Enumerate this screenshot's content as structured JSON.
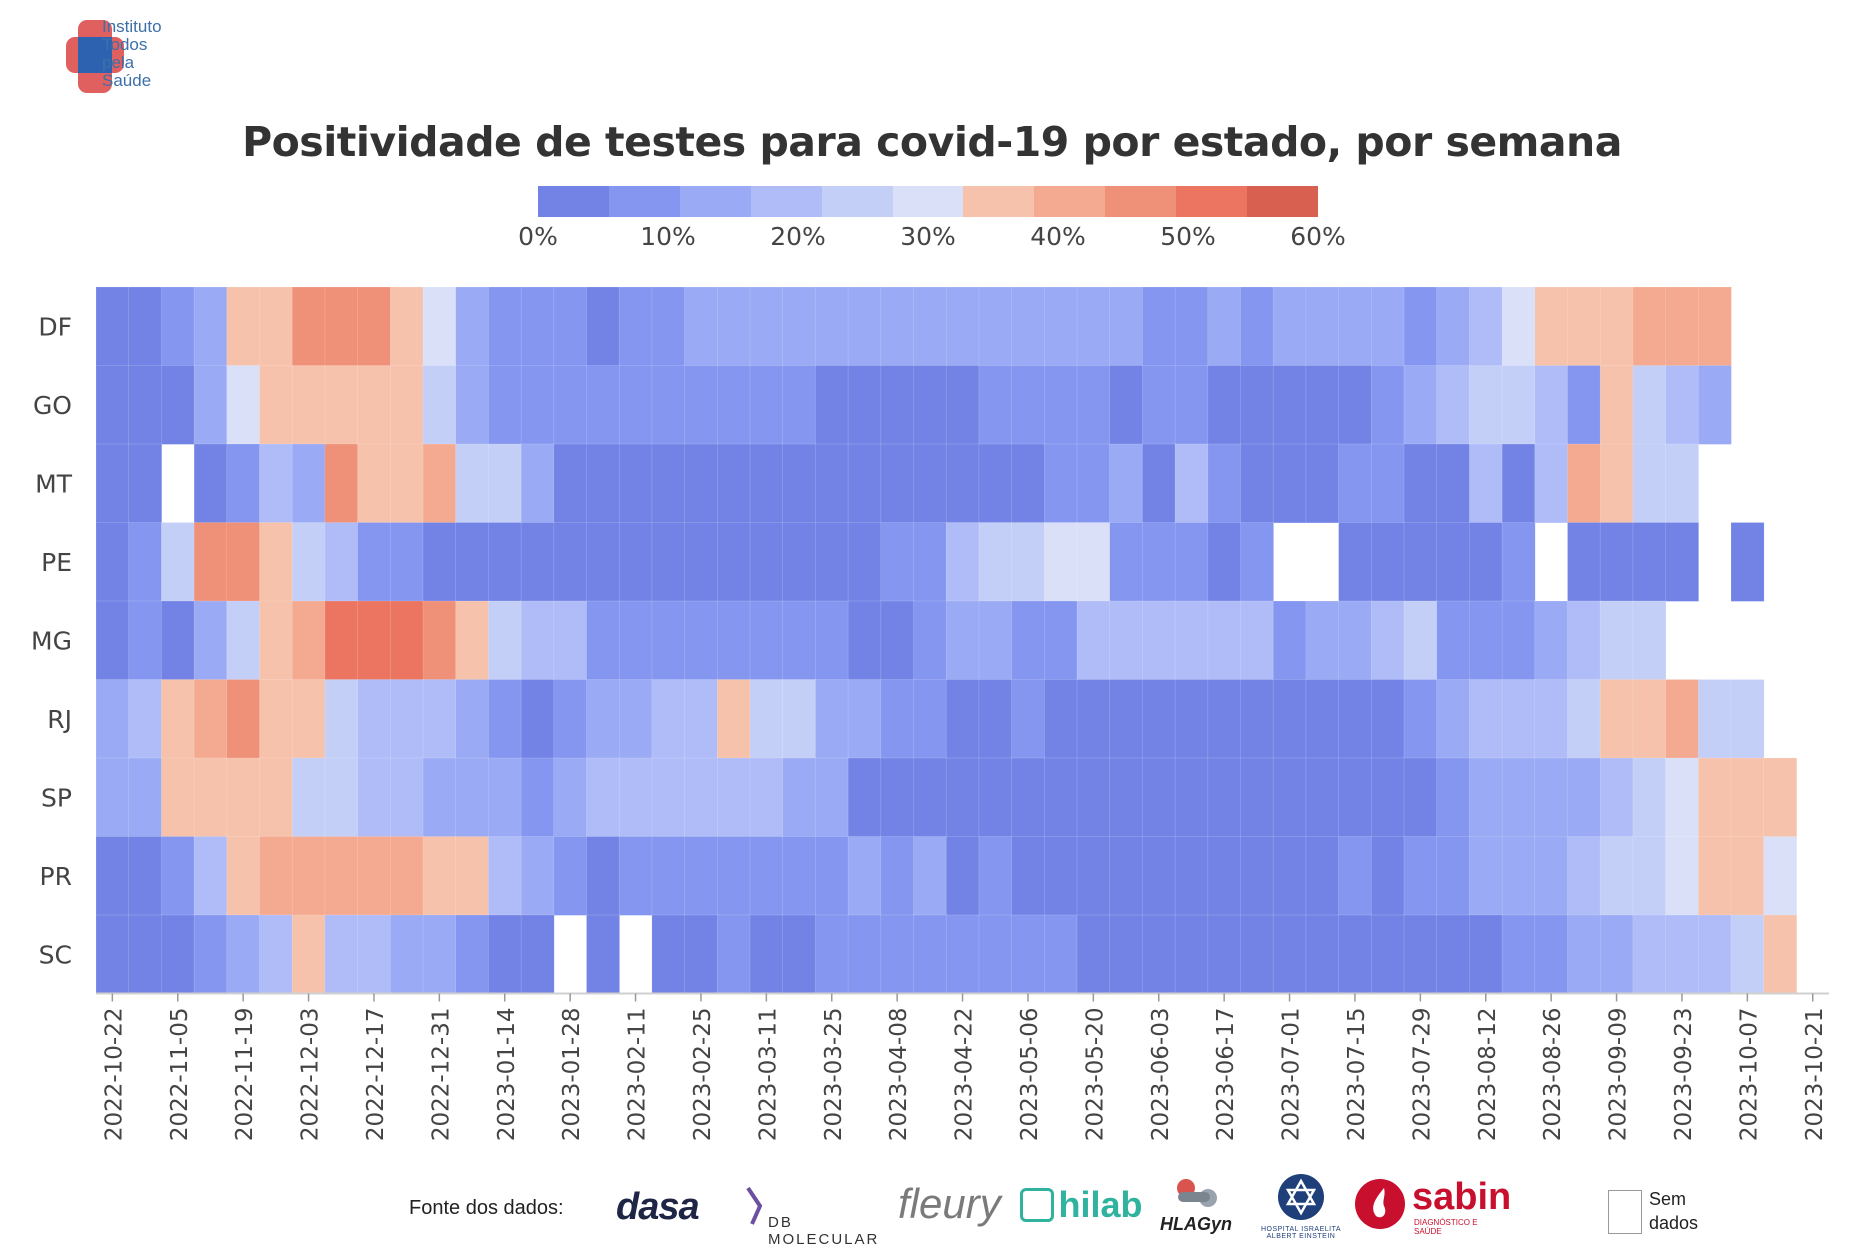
{
  "logo": {
    "text_lines": [
      "Instituto",
      "Todos",
      "pela",
      "Saúde"
    ],
    "colors": {
      "red": "#e06060",
      "blue": "#2d62b1"
    }
  },
  "title": "Positividade de testes para covid-19 por estado, por semana",
  "colorbar": {
    "segments": [
      "#7283e5",
      "#8596f0",
      "#9aaaf4",
      "#afbcf7",
      "#c4cff8",
      "#d9e0f8",
      "#f6c2ab",
      "#f3aa91",
      "#ef9079",
      "#eb7561",
      "#d86050"
    ],
    "tick_labels": [
      "0%",
      "10%",
      "20%",
      "30%",
      "40%",
      "50%",
      "60%"
    ],
    "tick_values": [
      0,
      10,
      20,
      30,
      40,
      50,
      60
    ],
    "range": [
      0,
      60
    ]
  },
  "chart_data": {
    "type": "heatmap",
    "title": "Positividade de testes para covid-19 por estado, por semana",
    "x_tick_labels": [
      "2022-10-22",
      "2022-11-05",
      "2022-11-19",
      "2022-12-03",
      "2022-12-17",
      "2022-12-31",
      "2023-01-14",
      "2023-01-28",
      "2023-02-11",
      "2023-02-25",
      "2023-03-11",
      "2023-03-25",
      "2023-04-08",
      "2023-04-22",
      "2023-05-06",
      "2023-05-20",
      "2023-06-03",
      "2023-06-17",
      "2023-07-01",
      "2023-07-15",
      "2023-07-29",
      "2023-08-12",
      "2023-08-26",
      "2023-09-09",
      "2023-09-23",
      "2023-10-07",
      "2023-10-21"
    ],
    "first_week": "2022-10-22",
    "weeks_count": 53,
    "rows": [
      "DF",
      "GO",
      "MT",
      "PE",
      "MG",
      "RJ",
      "SP",
      "PR",
      "SC"
    ],
    "values": {
      "DF": [
        3,
        5,
        9,
        14,
        38,
        36,
        44,
        45,
        44,
        33,
        28,
        14,
        10,
        10,
        7,
        5,
        10,
        9,
        14,
        11,
        13,
        13,
        14,
        12,
        12,
        11,
        13,
        14,
        13,
        15,
        11,
        11,
        9,
        6,
        11,
        9,
        12,
        11,
        13,
        11,
        10,
        14,
        20,
        28,
        36,
        36,
        38,
        41,
        41,
        43,
        null,
        null,
        null
      ],
      "GO": [
        2,
        1,
        4,
        14,
        28,
        36,
        38,
        38,
        35,
        33,
        24,
        13,
        10,
        7,
        7,
        8,
        6,
        6,
        6,
        6,
        10,
        6,
        3,
        0,
        4,
        5,
        4,
        6,
        7,
        8,
        6,
        5,
        7,
        6,
        5,
        1,
        5,
        3,
        4,
        8,
        14,
        21,
        22,
        22,
        18,
        10,
        33,
        24,
        18,
        14,
        null,
        null,
        null
      ],
      "MT": [
        3,
        0,
        null,
        5,
        9,
        18,
        15,
        46,
        38,
        38,
        40,
        25,
        25,
        15,
        1,
        2,
        1,
        2,
        1,
        0,
        1,
        1,
        1,
        1,
        2,
        1,
        1,
        2,
        2,
        7,
        10,
        13,
        5,
        17,
        9,
        3,
        5,
        1,
        9,
        9,
        2,
        5,
        18,
        5,
        19,
        40,
        38,
        26,
        25,
        null,
        null,
        null,
        null
      ],
      "PE": [
        3,
        7,
        22,
        48,
        48,
        37,
        22,
        18,
        10,
        6,
        2,
        2,
        1,
        1,
        1,
        2,
        1,
        1,
        3,
        3,
        2,
        2,
        3,
        4,
        7,
        9,
        19,
        25,
        25,
        28,
        28,
        8,
        10,
        9,
        2,
        6,
        null,
        null,
        1,
        2,
        1,
        1,
        0,
        6,
        null,
        1,
        2,
        3,
        1,
        null,
        1,
        null,
        null
      ],
      "MG": [
        3,
        6,
        4,
        13,
        24,
        38,
        42,
        53,
        54,
        52,
        45,
        38,
        23,
        19,
        18,
        7,
        10,
        10,
        8,
        8,
        7,
        8,
        7,
        5,
        4,
        9,
        13,
        12,
        10,
        10,
        17,
        17,
        19,
        19,
        17,
        17,
        10,
        11,
        14,
        18,
        22,
        9,
        10,
        10,
        12,
        18,
        25,
        26,
        null,
        null,
        null,
        null,
        null
      ],
      "RJ": [
        11,
        20,
        38,
        43,
        46,
        37,
        35,
        22,
        21,
        20,
        18,
        13,
        8,
        5,
        9,
        13,
        14,
        21,
        21,
        33,
        22,
        25,
        15,
        13,
        10,
        8,
        5,
        4,
        7,
        4,
        5,
        3,
        2,
        2,
        4,
        1,
        1,
        3,
        2,
        4,
        6,
        11,
        19,
        21,
        20,
        23,
        33,
        33,
        40,
        24,
        26,
        null,
        null
      ],
      "SP": [
        14,
        16,
        36,
        37,
        37,
        34,
        26,
        22,
        19,
        20,
        16,
        12,
        13,
        9,
        14,
        19,
        21,
        20,
        21,
        20,
        19,
        14,
        12,
        4,
        2,
        2,
        4,
        3,
        2,
        1,
        0,
        0,
        0,
        1,
        1,
        1,
        0,
        0,
        1,
        3,
        5,
        6,
        11,
        12,
        15,
        16,
        21,
        27,
        31,
        33,
        34,
        34,
        null
      ],
      "PR": [
        3,
        5,
        10,
        19,
        34,
        42,
        42,
        40,
        40,
        40,
        38,
        35,
        21,
        14,
        10,
        2,
        10,
        9,
        8,
        7,
        7,
        10,
        6,
        14,
        7,
        12,
        5,
        6,
        4,
        2,
        2,
        5,
        3,
        3,
        4,
        4,
        3,
        5,
        7,
        5,
        9,
        10,
        11,
        12,
        14,
        18,
        22,
        27,
        29,
        35,
        35,
        32,
        null
      ],
      "SC": [
        3,
        5,
        2,
        8,
        14,
        19,
        36,
        20,
        17,
        16,
        13,
        10,
        3,
        0,
        null,
        4,
        null,
        3,
        5,
        7,
        4,
        2,
        8,
        8,
        6,
        6,
        6,
        6,
        6,
        8,
        2,
        1,
        2,
        3,
        2,
        0,
        2,
        1,
        1,
        1,
        1,
        4,
        4,
        7,
        10,
        13,
        14,
        18,
        18,
        19,
        22,
        33,
        null
      ]
    },
    "value_range": [
      0,
      60
    ],
    "legend": {
      "no_data_label": [
        "Sem",
        "dados"
      ]
    }
  },
  "sources": {
    "label": "Fonte dos dados:",
    "brands": [
      "dasa",
      "DB MOLECULAR",
      "fleury",
      "hilab",
      "HLAGyn",
      "HOSPITAL ISRAELITA ALBERT EINSTEIN",
      "sabin",
      "DIAGNÓSTICO E SAÚDE"
    ]
  }
}
